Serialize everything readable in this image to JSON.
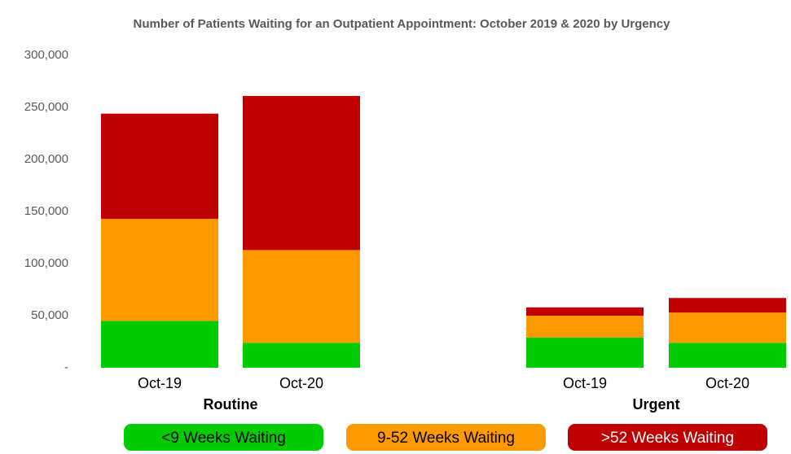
{
  "chart_data": {
    "type": "stacked-bar",
    "title": "Number of Patients Waiting for an Outpatient Appointment: October 2019 & 2020 by Urgency",
    "categories": [
      "Oct-19",
      "Oct-20",
      "Oct-19",
      "Oct-20"
    ],
    "groups": [
      "Routine",
      "Urgent"
    ],
    "series": [
      {
        "name": "<9 Weeks Waiting",
        "color": "#00cc00",
        "values": [
          45000,
          24000,
          29000,
          24000
        ]
      },
      {
        "name": "9-52 Weeks Waiting",
        "color": "#ff9900",
        "values": [
          98000,
          89000,
          21000,
          29000
        ]
      },
      {
        "name": ">52 Weeks Waiting",
        "color": "#c00000",
        "values": [
          101000,
          148000,
          8000,
          14000
        ]
      }
    ],
    "ylim": [
      0,
      300000
    ],
    "yticks": [
      {
        "value": 0,
        "label": "-"
      },
      {
        "value": 50000,
        "label": "50,000"
      },
      {
        "value": 100000,
        "label": "100,000"
      },
      {
        "value": 150000,
        "label": "150,000"
      },
      {
        "value": 200000,
        "label": "200,000"
      },
      {
        "value": 250000,
        "label": "250,000"
      },
      {
        "value": 300000,
        "label": "300,000"
      }
    ],
    "grid": false,
    "legend": "bottom"
  }
}
